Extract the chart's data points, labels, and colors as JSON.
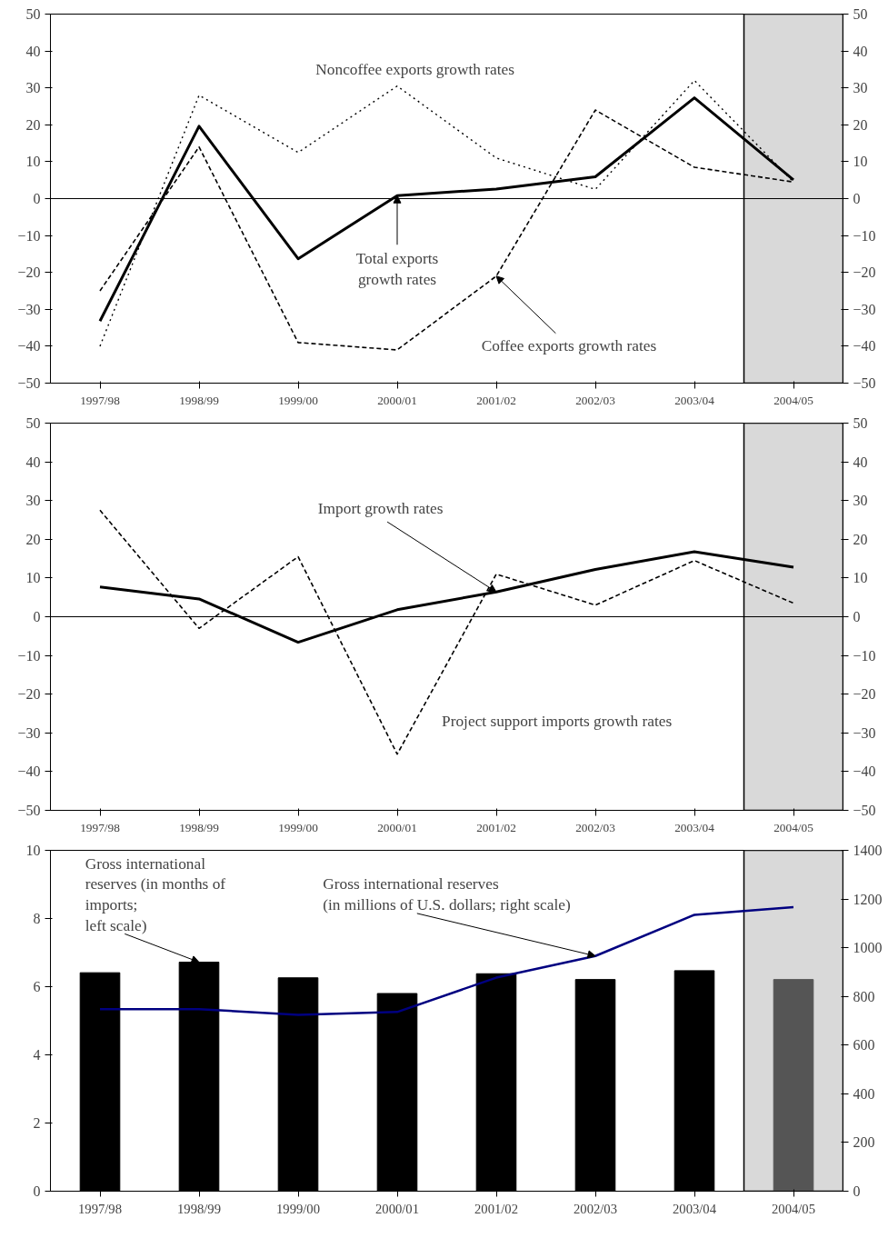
{
  "chart_data": [
    {
      "type": "line",
      "categories": [
        "1997/98",
        "1998/99",
        "1999/00",
        "2000/01",
        "2001/02",
        "2002/03",
        "2003/04",
        "2004/05"
      ],
      "series": [
        {
          "color": "#000000",
          "line_style": "solid",
          "values": [
            -33.2,
            19.6,
            -16.3,
            0.8,
            2.6,
            5.9,
            27.3,
            5.1
          ]
        },
        {
          "color": "#000000",
          "line_style": "dashed",
          "values": [
            -25,
            14,
            -39,
            -41,
            -21,
            24,
            8.5,
            4.5
          ]
        },
        {
          "color": "#000000",
          "line_style": "dotted",
          "values": [
            -40,
            28,
            12.5,
            30.5,
            11,
            2.5,
            32,
            4.5
          ]
        }
      ],
      "ylim": [
        -50,
        50
      ],
      "yticks": [
        -50,
        -40,
        -30,
        -20,
        -10,
        0,
        10,
        20,
        30,
        40,
        50
      ],
      "y2lim": [
        -50,
        50
      ],
      "y2ticks": [
        -50,
        -40,
        -30,
        -20,
        -10,
        0,
        10,
        20,
        30,
        40,
        50
      ],
      "ref_lines": [
        {
          "axis": "y",
          "value": 0,
          "color": "#000000"
        }
      ],
      "bands": [
        {
          "axis": "x",
          "from": "2004/05",
          "to": "2004/05",
          "color": "#d9d9d9"
        }
      ],
      "annotations": [
        "Noncoffee exports growth rates",
        {
          "text": "Total exports\ngrowth rates",
          "x": "2000/01",
          "y": 0.8
        },
        {
          "text": "Coffee exports growth rates",
          "x": "2001/02",
          "y": -21
        }
      ],
      "grid": false
    },
    {
      "type": "line",
      "categories": [
        "1997/98",
        "1998/99",
        "1999/00",
        "2000/01",
        "2001/02",
        "2002/03",
        "2003/04",
        "2004/05"
      ],
      "series": [
        {
          "color": "#000000",
          "line_style": "solid",
          "values": [
            7.7,
            4.6,
            -6.6,
            1.8,
            6.4,
            12.2,
            16.8,
            12.8
          ]
        },
        {
          "color": "#000000",
          "line_style": "dashed",
          "values": [
            27.5,
            -3,
            15.5,
            -35.5,
            11,
            3,
            14.5,
            3.5
          ]
        }
      ],
      "ylim": [
        -50,
        50
      ],
      "yticks": [
        -50,
        -40,
        -30,
        -20,
        -10,
        0,
        10,
        20,
        30,
        40,
        50
      ],
      "y2lim": [
        -50,
        50
      ],
      "y2ticks": [
        -50,
        -40,
        -30,
        -20,
        -10,
        0,
        10,
        20,
        30,
        40,
        50
      ],
      "ref_lines": [
        {
          "axis": "y",
          "value": 0,
          "color": "#000000"
        }
      ],
      "bands": [
        {
          "axis": "x",
          "from": "2004/05",
          "to": "2004/05",
          "color": "#d9d9d9"
        }
      ],
      "annotations": [
        {
          "text": "Import growth rates",
          "x": "2001/02",
          "y": 6.4
        },
        "Project support imports growth rates"
      ],
      "grid": false
    },
    {
      "type": "bar",
      "categories": [
        "1997/98",
        "1998/99",
        "1999/00",
        "2000/01",
        "2001/02",
        "2002/03",
        "2003/04",
        "2004/05"
      ],
      "series": [
        {
          "type": "bar",
          "colors": [
            "#000000",
            "#000000",
            "#000000",
            "#000000",
            "#000000",
            "#000000",
            "#000000",
            "#555555"
          ],
          "values": [
            6.41,
            6.72,
            6.26,
            5.8,
            6.38,
            6.21,
            6.47,
            6.21
          ]
        },
        {
          "type": "line",
          "axis": "y2",
          "color": "#000080",
          "line_style": "solid",
          "values": [
            748,
            748,
            724,
            736,
            877,
            966,
            1135,
            1167
          ]
        }
      ],
      "ylim": [
        0,
        10
      ],
      "yticks": [
        0,
        2,
        4,
        6,
        8,
        10
      ],
      "y2lim": [
        0,
        1400
      ],
      "y2ticks": [
        0,
        200,
        400,
        600,
        800,
        1000,
        1200,
        1400
      ],
      "bands": [
        {
          "axis": "x",
          "from": "2004/05",
          "to": "2004/05",
          "color": "#d9d9d9"
        }
      ],
      "annotations": [
        {
          "text": "Gross international\n reserves (in months of\nimports;\nleft scale)",
          "x": "1998/99",
          "y": 6.72
        },
        {
          "text": "Gross international reserves\n(in millions of U.S. dollars; right scale)",
          "x": "2002/03",
          "y": 6.9
        }
      ],
      "grid": false
    }
  ]
}
